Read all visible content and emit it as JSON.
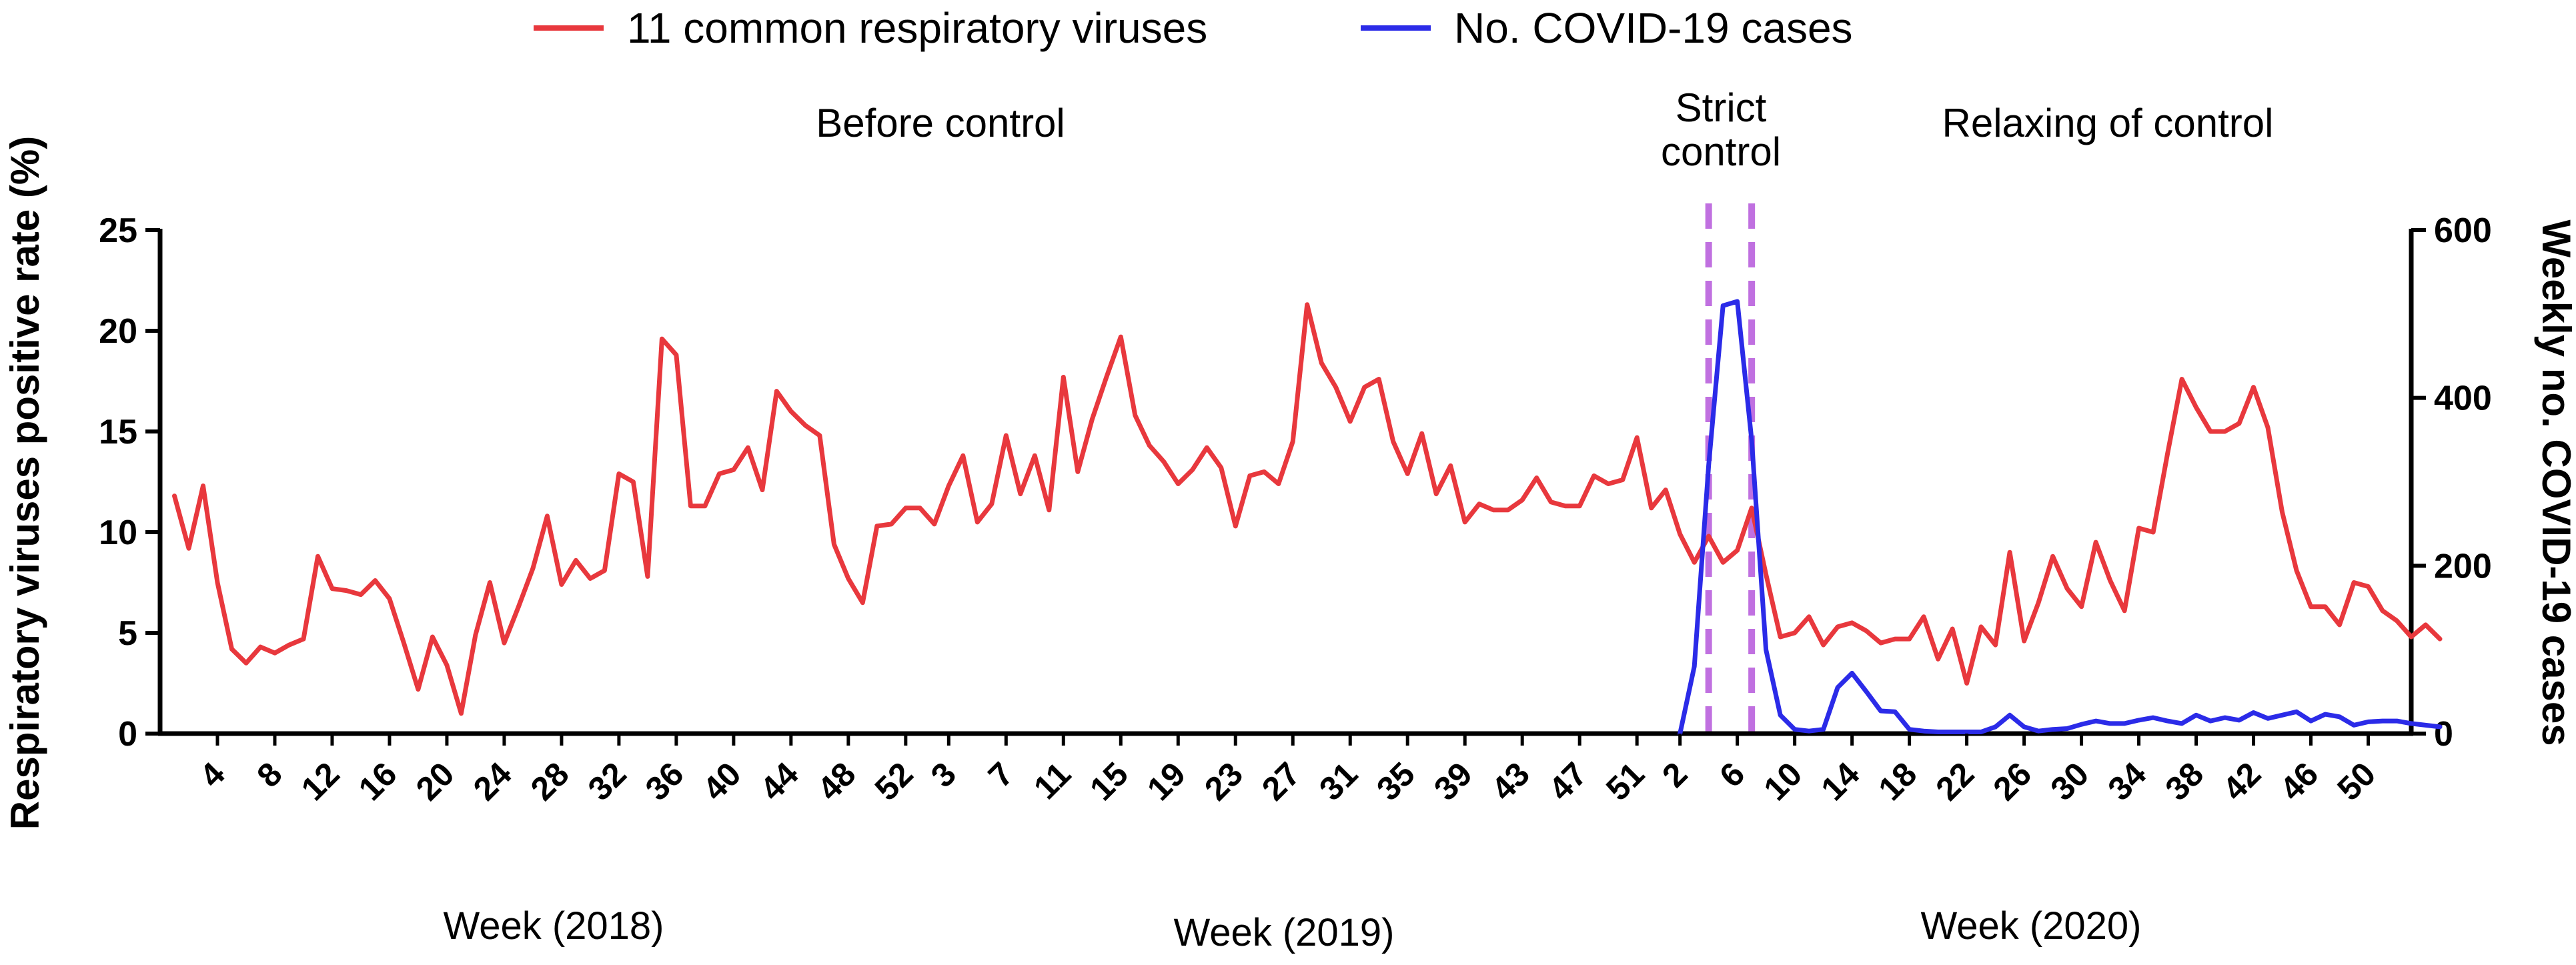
{
  "chart_data": {
    "type": "line",
    "title": "",
    "legend": {
      "placement": "top",
      "entries": [
        {
          "name": "11 common respiratory viruses",
          "color": "#e8383d"
        },
        {
          "name": "No. COVID-19 cases",
          "color": "#2b2be8"
        }
      ]
    },
    "periods": [
      {
        "label": "Before control",
        "lines": [
          "Before control"
        ]
      },
      {
        "label": "Strict control",
        "lines": [
          "Strict",
          "control"
        ]
      },
      {
        "label": "Relaxing of control",
        "lines": [
          "Relaxing of control"
        ]
      }
    ],
    "control_markers": {
      "x": [
        108,
        111
      ],
      "color": "#c070e0"
    },
    "xlabels": [
      "Week (2018)",
      "Week (2019)",
      "Week (2020)"
    ],
    "x_ticks": [
      {
        "pos": 4,
        "label": "4"
      },
      {
        "pos": 8,
        "label": "8"
      },
      {
        "pos": 12,
        "label": "12"
      },
      {
        "pos": 16,
        "label": "16"
      },
      {
        "pos": 20,
        "label": "20"
      },
      {
        "pos": 24,
        "label": "24"
      },
      {
        "pos": 28,
        "label": "28"
      },
      {
        "pos": 32,
        "label": "32"
      },
      {
        "pos": 36,
        "label": "36"
      },
      {
        "pos": 40,
        "label": "40"
      },
      {
        "pos": 44,
        "label": "44"
      },
      {
        "pos": 48,
        "label": "48"
      },
      {
        "pos": 52,
        "label": "52"
      },
      {
        "pos": 55,
        "label": "3"
      },
      {
        "pos": 59,
        "label": "7"
      },
      {
        "pos": 63,
        "label": "11"
      },
      {
        "pos": 67,
        "label": "15"
      },
      {
        "pos": 71,
        "label": "19"
      },
      {
        "pos": 75,
        "label": "23"
      },
      {
        "pos": 79,
        "label": "27"
      },
      {
        "pos": 83,
        "label": "31"
      },
      {
        "pos": 87,
        "label": "35"
      },
      {
        "pos": 91,
        "label": "39"
      },
      {
        "pos": 95,
        "label": "43"
      },
      {
        "pos": 99,
        "label": "47"
      },
      {
        "pos": 103,
        "label": "51"
      },
      {
        "pos": 106,
        "label": "2"
      },
      {
        "pos": 110,
        "label": "6"
      },
      {
        "pos": 114,
        "label": "10"
      },
      {
        "pos": 118,
        "label": "14"
      },
      {
        "pos": 122,
        "label": "18"
      },
      {
        "pos": 126,
        "label": "22"
      },
      {
        "pos": 130,
        "label": "26"
      },
      {
        "pos": 134,
        "label": "30"
      },
      {
        "pos": 138,
        "label": "34"
      },
      {
        "pos": 142,
        "label": "38"
      },
      {
        "pos": 146,
        "label": "42"
      },
      {
        "pos": 150,
        "label": "46"
      },
      {
        "pos": 154,
        "label": "50"
      }
    ],
    "xlim": [
      0,
      157
    ],
    "left_axis": {
      "label": "Respiratory viruses positive rate (%)",
      "ylim": [
        0,
        25
      ],
      "ticks": [
        0,
        5,
        10,
        15,
        20,
        25
      ]
    },
    "right_axis": {
      "label": "Weekly no. COVID-19 cases",
      "ylim": [
        0,
        600
      ],
      "ticks": [
        0,
        200,
        400,
        600
      ]
    },
    "series": [
      {
        "name": "11 common respiratory viruses",
        "axis": "left",
        "color": "#e8383d",
        "x_start": 1,
        "values": [
          11.8,
          9.2,
          12.3,
          7.5,
          4.2,
          3.5,
          4.3,
          4.0,
          4.4,
          4.7,
          8.8,
          7.2,
          7.1,
          6.9,
          7.6,
          6.7,
          4.5,
          2.2,
          4.8,
          3.4,
          1.0,
          4.9,
          7.5,
          4.5,
          6.3,
          8.2,
          10.8,
          7.4,
          8.6,
          7.7,
          8.1,
          12.9,
          12.5,
          7.8,
          19.6,
          18.8,
          11.3,
          11.3,
          12.9,
          13.1,
          14.2,
          12.1,
          17.0,
          16.0,
          15.3,
          14.8,
          9.4,
          7.7,
          6.5,
          10.3,
          10.4,
          11.2,
          11.2,
          10.4,
          12.3,
          13.8,
          10.5,
          11.4,
          14.8,
          11.9,
          13.8,
          11.1,
          17.7,
          13.0,
          15.6,
          17.7,
          19.7,
          15.8,
          14.3,
          13.5,
          12.4,
          13.1,
          14.2,
          13.2,
          10.3,
          12.8,
          13.0,
          12.4,
          14.5,
          21.3,
          18.4,
          17.2,
          15.5,
          17.2,
          17.6,
          14.5,
          12.9,
          14.9,
          11.9,
          13.3,
          10.5,
          11.4,
          11.1,
          11.1,
          11.6,
          12.7,
          11.5,
          11.3,
          11.3,
          12.8,
          12.4,
          12.6,
          14.7,
          11.2,
          12.1,
          9.9,
          8.5,
          9.8,
          8.5,
          9.1,
          11.2,
          7.9,
          4.8,
          5.0,
          5.8,
          4.4,
          5.3,
          5.5,
          5.1,
          4.5,
          4.7,
          4.7,
          5.8,
          3.7,
          5.2,
          2.5,
          5.3,
          4.4,
          9.0,
          4.6,
          6.5,
          8.8,
          7.2,
          6.3,
          9.5,
          7.6,
          6.1,
          10.2,
          10.0,
          13.9,
          17.6,
          16.2,
          15.0,
          15.0,
          15.4,
          17.2,
          15.2,
          11.0,
          8.1,
          6.3,
          6.3,
          5.4,
          7.5,
          7.3,
          6.1,
          5.6,
          4.8,
          5.4,
          4.7
        ]
      },
      {
        "name": "No. COVID-19 cases",
        "axis": "right",
        "color": "#2b2be8",
        "x_start": 106,
        "values": [
          0,
          80,
          320,
          510,
          515,
          350,
          100,
          22,
          5,
          3,
          5,
          55,
          72,
          50,
          27,
          26,
          5,
          3,
          2,
          2,
          2,
          2,
          8,
          22,
          8,
          3,
          5,
          6,
          11,
          15,
          12,
          12,
          16,
          19,
          15,
          12,
          22,
          15,
          19,
          16,
          25,
          18,
          22,
          26,
          15,
          23,
          20,
          10,
          14,
          15,
          15,
          12,
          10,
          8
        ]
      }
    ]
  }
}
